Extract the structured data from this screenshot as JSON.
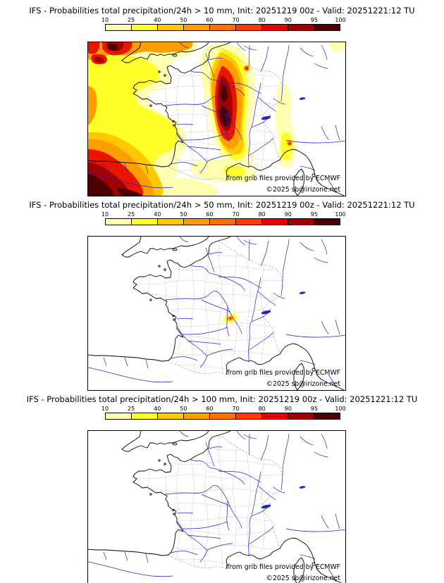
{
  "colorbar": {
    "labels": [
      "10",
      "25",
      "40",
      "50",
      "60",
      "70",
      "80",
      "90",
      "95",
      "100"
    ],
    "colors": [
      "#ffffb2",
      "#ffff29",
      "#ffc800",
      "#ff9e00",
      "#ff7000",
      "#ff3c00",
      "#e60000",
      "#a30000",
      "#4d0000"
    ]
  },
  "panels": [
    {
      "title": "IFS - Probabilities total precipitation/24h > 10 mm, Init: 20251219 00z - Valid: 20251221:12 TU",
      "attribution": "from grib files provided by ECMWF",
      "copyright": "©2025 sb@irizone.net"
    },
    {
      "title": "IFS - Probabilities total precipitation/24h > 50 mm, Init: 20251219 00z - Valid: 20251221:12 TU",
      "attribution": "from grib files provided by ECMWF",
      "copyright": "©2025 sb@irizone.net"
    },
    {
      "title": "IFS - Probabilities total precipitation/24h > 100 mm, Init: 20251219 00z - Valid: 20251221:12 TU",
      "attribution": "from grib files provided by ECMWF",
      "copyright": "©2025 sb@irizone.net"
    }
  ],
  "map_colors": {
    "coastline": "#000000",
    "rivers": "#2424c8",
    "departments": "#cccccc",
    "country_borders": "#999999",
    "background": "#ffffff"
  }
}
